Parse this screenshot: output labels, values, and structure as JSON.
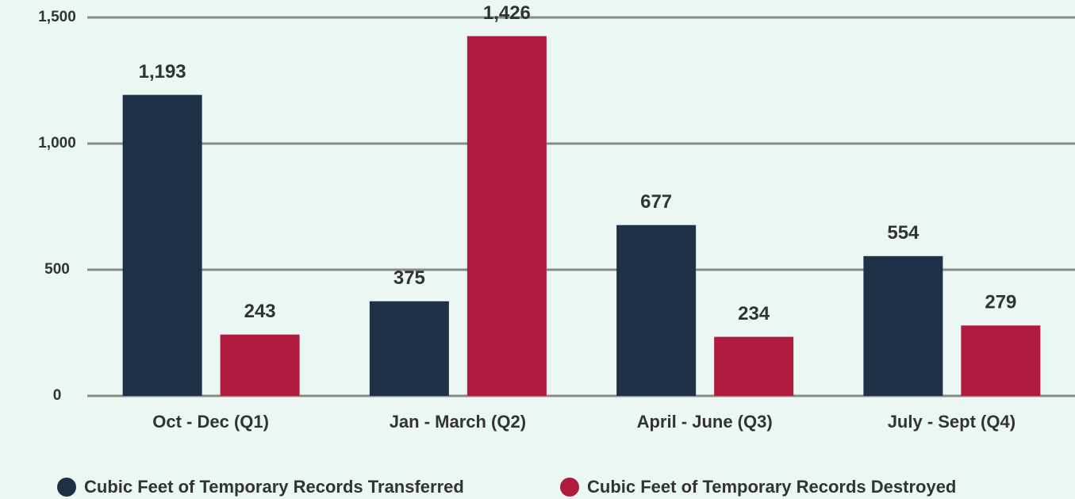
{
  "chart_data": {
    "type": "bar",
    "categories": [
      "Oct - Dec (Q1)",
      "Jan - March (Q2)",
      "April - June (Q3)",
      "July - Sept (Q4)"
    ],
    "series": [
      {
        "name": "Cubic Feet of Temporary Records Transferred",
        "color": "#1e3147",
        "values": [
          1193,
          375,
          677,
          554
        ],
        "value_labels": [
          "1,193",
          "375",
          "677",
          "554"
        ]
      },
      {
        "name": "Cubic Feet of Temporary Records Destroyed",
        "color": "#b01c3e",
        "values": [
          243,
          1426,
          234,
          279
        ],
        "value_labels": [
          "243",
          "1,426",
          "234",
          "279"
        ]
      }
    ],
    "ylim": [
      0,
      1500
    ],
    "yticks": [
      0,
      500,
      {
        "value": 1000,
        "label": "1,000"
      },
      {
        "value": 1500,
        "label": "1,500"
      }
    ],
    "grid": true,
    "legend": "bottom"
  }
}
